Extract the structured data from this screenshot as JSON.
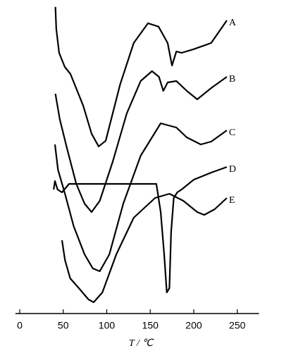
{
  "chart_data": {
    "type": "line",
    "x_label": "T / ℃",
    "xlim": [
      -5,
      275
    ],
    "xticks": [
      0,
      50,
      100,
      150,
      200,
      250
    ],
    "ylim": [
      0,
      110
    ],
    "series": [
      {
        "name": "A",
        "color": "#000000",
        "x": [
          41,
          42,
          45.3,
          51.8,
          58.3,
          72.9,
          82.6,
          90.7,
          98.8,
          115.4,
          131,
          147.4,
          159.5,
          170,
          175,
          180,
          186,
          200,
          220,
          238
        ],
        "values": [
          108.8,
          101,
          92.5,
          87.5,
          85,
          73.8,
          63.8,
          59.3,
          61.3,
          81.3,
          96,
          103,
          101.8,
          96,
          88,
          93,
          92.5,
          93.8,
          96,
          104
        ]
      },
      {
        "name": "B",
        "color": "#000000",
        "x": [
          41,
          46,
          54,
          65,
          74.5,
          82.6,
          92,
          107,
          123,
          139,
          152,
          160,
          165,
          170,
          180,
          192,
          204,
          220,
          238
        ],
        "values": [
          78,
          69,
          59,
          46,
          39,
          36,
          40,
          54,
          71,
          82.5,
          86,
          84,
          79,
          82,
          82.5,
          79,
          76,
          80,
          84
        ]
      },
      {
        "name": "C",
        "color": "#000000",
        "x": [
          40.5,
          44,
          52,
          62,
          74.5,
          84,
          92,
          103,
          119,
          139,
          162,
          180,
          192,
          208,
          220,
          238
        ],
        "values": [
          60,
          51,
          42.5,
          31,
          21,
          16,
          15,
          21,
          39,
          56,
          67.5,
          66,
          62.5,
          60,
          61,
          65
        ]
      },
      {
        "name": "D",
        "color": "#000000",
        "x": [
          39,
          40.5,
          43.5,
          48.6,
          56.7,
          74.5,
          107,
          147,
          157,
          162,
          166,
          169,
          172,
          174,
          177,
          181,
          186,
          200,
          220,
          238
        ],
        "values": [
          44,
          47,
          44,
          43,
          46,
          46,
          46,
          46,
          46,
          36,
          21,
          7.5,
          9,
          29,
          41,
          43,
          44,
          47.5,
          50,
          52
        ]
      },
      {
        "name": "E",
        "color": "#000000",
        "x": [
          48.6,
          52,
          58,
          68,
          79,
          85,
          95,
          111,
          131,
          155.5,
          172,
          188,
          204,
          212,
          224,
          238
        ],
        "values": [
          26,
          19,
          12.5,
          9,
          5,
          4,
          7.5,
          21,
          34,
          41,
          42.5,
          40,
          36,
          35,
          37,
          41
        ]
      }
    ]
  }
}
